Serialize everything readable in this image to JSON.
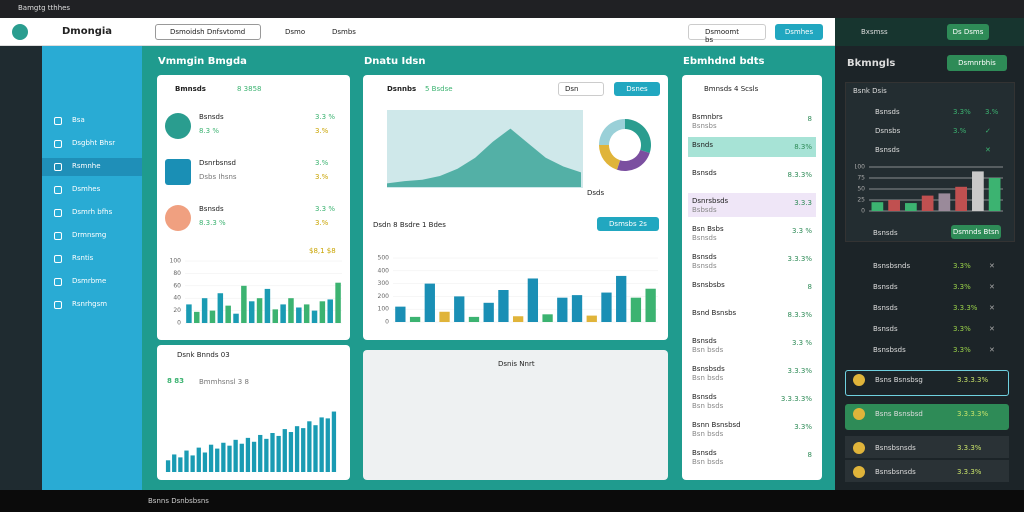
{
  "ui": {
    "browser_tab": "Bamgtg tthhes",
    "brand": "Dmongia",
    "toolbar": [
      "Dsmoidsh Dnfsvtomd",
      "Dsmo",
      "Dsmbs"
    ],
    "search": "Dsmoomt bs",
    "header_button": "Dsmhes",
    "nav": [
      "Bsa",
      "Dsgbht Bhsr",
      "Rsmnhe",
      "Dsmhes",
      "Dsmrh bfhs",
      "Drmnsmg",
      "Rsntis",
      "Dsmrbme",
      "Rsnrhgsm"
    ],
    "section_titles": [
      "Vmmgin Bmgda",
      "Dnatu Idsn",
      "Ebmhdnd bdts"
    ],
    "left_card": {
      "title": "Bmnsds",
      "badge": "8 3858",
      "items": [
        {
          "name": "Bsnsds",
          "sub": "8.3 %",
          "val": "3.3 %",
          "pct": "3.%"
        },
        {
          "name": "Dsnrbsnsd",
          "sub": "Dsbs Ihsns",
          "val": "3.%",
          "pct": "3.%"
        },
        {
          "name": "Bsnsds",
          "sub": "8.3.3 %",
          "val": "3.3 %",
          "pct": "3.%"
        }
      ],
      "legend": "$8,1 $8"
    },
    "bottom_left": {
      "title": "Dsnk Bnnds 03",
      "legend": "8 83",
      "note": "Bmmhsnsl 3 8"
    },
    "mid_card": {
      "title": "Dsnnbs",
      "badge": "5 Bsdse",
      "select": "Dsn",
      "button": "Dsnes",
      "chart_title": "Dsdn 8 Bsdre 1 Bdes",
      "button2": "Dsmsbs 2s",
      "donut_label": "Dsds"
    },
    "mid_bottom": "Dsnis Nnrt",
    "right_card": {
      "header": "Bmnsds 4 Scsls",
      "items": [
        {
          "name": "Bsmnbrs",
          "sub": "Bsnsbs",
          "val": "8"
        },
        {
          "name": "Bsnds",
          "sub": "",
          "val": "8.3%"
        },
        {
          "name": "Bsnsds",
          "sub": "",
          "val": "8.3.3%"
        },
        {
          "name": "Dsnrsbsds",
          "sub": "Bsbsds",
          "val": "3.3.3"
        },
        {
          "name": "Bsn Bsbs",
          "sub": "Bsnsds",
          "val": "3.3 %"
        },
        {
          "name": "Bsnsds",
          "sub": "Bsnsds",
          "val": "3.3.3%"
        },
        {
          "name": "Bsnsbsbs",
          "sub": "",
          "val": "8"
        },
        {
          "name": "Bsnd Bsnsbs",
          "sub": "",
          "val": "8.3.3%"
        },
        {
          "name": "Bsnsds",
          "sub": "Bsn bsds",
          "val": "3.3 %"
        },
        {
          "name": "Bsnsbsds",
          "sub": "Bsn bsds",
          "val": "3.3.3%"
        },
        {
          "name": "Bsnsds",
          "sub": "Bsn bsds",
          "val": "3.3.3.3%"
        },
        {
          "name": "Bsnn Bsnsbsd",
          "sub": "Bsn bsds",
          "val": "3.3%"
        },
        {
          "name": "Bsnsds",
          "sub": "Bsn bsds",
          "val": "8"
        }
      ]
    },
    "dark": {
      "header": "Bxsmss",
      "button": "Ds Dsms",
      "title": "Bkmngls",
      "button2": "Dsmnrbhis",
      "box_title": "Bsnk Dsis",
      "box_rows": [
        {
          "name": "Bsnsds",
          "a": "3.3%",
          "b": "3.%"
        },
        {
          "name": "Dsnsbs",
          "a": "3.%",
          "b": "✓"
        },
        {
          "name": "Bsnsds",
          "a": "",
          "b": "✕"
        }
      ],
      "action": "Bsnsds",
      "action_btn": "Dsmnds Btsn",
      "rows": [
        {
          "name": "Bsnsbsnds",
          "a": "3.3%",
          "b": "✕"
        },
        {
          "name": "Bsnsds",
          "a": "3.3%",
          "b": "✕"
        },
        {
          "name": "Bsnsds",
          "a": "3.3.3%",
          "b": "✕"
        },
        {
          "name": "Bsnsds",
          "a": "3.3%",
          "b": "✕"
        },
        {
          "name": "Bsnsbsds",
          "a": "3.3%",
          "b": "✕"
        }
      ],
      "hl": [
        {
          "name": "Bsns Bsnsbsg",
          "a": "3.3.3.3%"
        },
        {
          "name": "Bsns Bsnsbsd",
          "a": "3.3.3.3%"
        },
        {
          "name": "Bsnsbsnsds",
          "a": "3.3.3%"
        },
        {
          "name": "Bsnsbsnsds",
          "a": "3.3.3%"
        }
      ]
    },
    "taskbar": "Bsnns Dsnbsbsns"
  },
  "chart_data": [
    {
      "type": "bar",
      "ylim": [
        0,
        100
      ],
      "yticks": [
        0,
        20,
        40,
        60,
        80,
        100
      ],
      "values": [
        30,
        18,
        40,
        20,
        48,
        28,
        15,
        60,
        35,
        40,
        55,
        22,
        30,
        40,
        25,
        30,
        20,
        35,
        38,
        65
      ],
      "colors": [
        "#1a9bb3",
        "#3cb371",
        "#1a9bb3",
        "#3cb371",
        "#1a9bb3",
        "#3cb371",
        "#1a9bb3",
        "#3cb371",
        "#1a9bb3",
        "#3cb371",
        "#1a9bb3",
        "#3cb371",
        "#1a9bb3",
        "#3cb371",
        "#1a9bb3",
        "#3cb371",
        "#1a9bb3",
        "#3cb371",
        "#1a9bb3",
        "#3cb371"
      ]
    },
    {
      "type": "bar",
      "ylim": [
        0,
        500
      ],
      "yticks": [
        0,
        100,
        200,
        300,
        400,
        500
      ],
      "values": [
        120,
        40,
        300,
        80,
        200,
        40,
        150,
        250,
        45,
        340,
        60,
        190,
        210,
        50,
        230,
        360,
        190,
        260
      ],
      "colors": [
        "#1a8fb5",
        "#3cb371",
        "#1a8fb5",
        "#e0b43a",
        "#1a8fb5",
        "#3cb371",
        "#1a8fb5",
        "#1a8fb5",
        "#e0b43a",
        "#1a8fb5",
        "#3cb371",
        "#1a8fb5",
        "#1a8fb5",
        "#e0b43a",
        "#1a8fb5",
        "#1a8fb5",
        "#3cb371",
        "#3cb371"
      ]
    },
    {
      "type": "bar",
      "ylim": [
        0,
        80
      ],
      "yticks": [],
      "values": [
        12,
        18,
        15,
        22,
        17,
        25,
        20,
        28,
        24,
        30,
        27,
        33,
        29,
        35,
        31,
        38,
        34,
        40,
        37,
        44,
        41,
        47,
        45,
        52,
        48,
        56,
        55,
        62
      ],
      "colors": [
        "#1a9bb3"
      ]
    },
    {
      "type": "bar",
      "ylim": [
        0,
        100
      ],
      "yticks": [
        0,
        25,
        50,
        75,
        100
      ],
      "values": [
        20,
        25,
        18,
        35,
        40,
        55,
        90,
        75
      ],
      "colors": [
        "#3cb371",
        "#c05050",
        "#3cb371",
        "#c05050",
        "#9a8a9a",
        "#c05050",
        "#c8c8c8",
        "#3cb371"
      ]
    },
    {
      "type": "area",
      "ylim": [
        0,
        100
      ],
      "values": [
        5,
        8,
        10,
        15,
        25,
        40,
        62,
        80,
        60,
        40,
        28,
        20
      ],
      "color": "#2a9d8f"
    },
    {
      "type": "pie",
      "values": [
        30,
        25,
        20,
        25
      ],
      "colors": [
        "#2a9d8f",
        "#7b4fa0",
        "#e0b43a",
        "#9ad0d8"
      ]
    }
  ]
}
